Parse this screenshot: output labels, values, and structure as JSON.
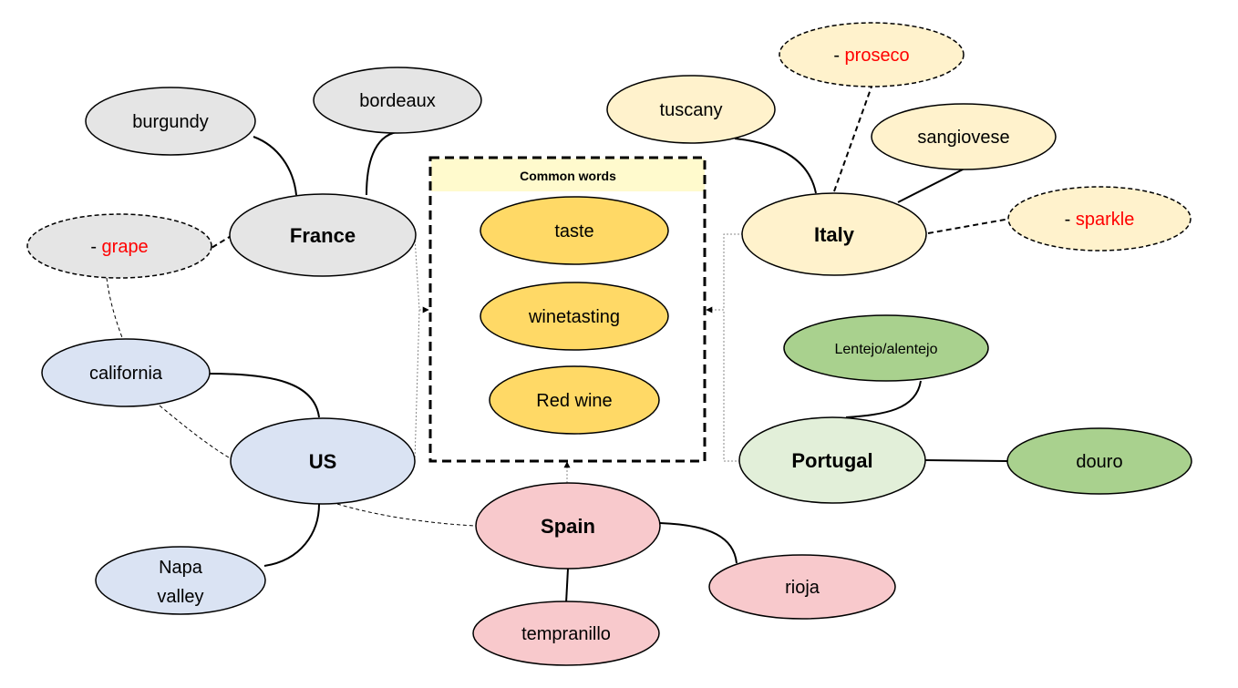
{
  "common_box": {
    "title": "Common words"
  },
  "common": [
    {
      "label": "taste"
    },
    {
      "label": "winetasting"
    },
    {
      "label": "Red wine"
    }
  ],
  "countries": {
    "france": "France",
    "italy": "Italy",
    "us": "US",
    "spain": "Spain",
    "portugal": "Portugal"
  },
  "terms": {
    "burgundy": "burgundy",
    "bordeaux": "bordeaux",
    "grape_prefix": "- ",
    "grape": "grape",
    "tuscany": "tuscany",
    "proseco_prefix": "- ",
    "proseco": "proseco",
    "sangiovese": "sangiovese",
    "sparkle_prefix": "- ",
    "sparkle": "sparkle",
    "lentejo": "Lentejo/alentejo",
    "douro": "douro",
    "california": "california",
    "napa_line1": "Napa",
    "napa_line2": "valley",
    "tempranillo": "tempranillo",
    "rioja": "rioja"
  },
  "colors": {
    "france": "#e5e5e5",
    "italy": "#fff2cc",
    "us": "#dae3f3",
    "spain": "#f8c9cc",
    "portugal": "#e2efd9",
    "portugal_terms": "#a9d18e",
    "common": "#ffd966",
    "common_header": "#fffacd",
    "accent_red": "#ff0000"
  }
}
